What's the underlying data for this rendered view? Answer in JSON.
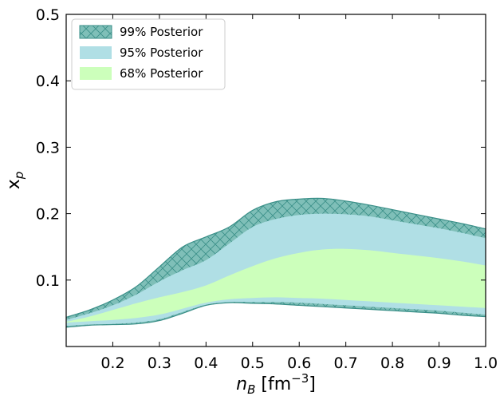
{
  "chart_data": {
    "type": "area",
    "title": "",
    "xlabel_main": "n",
    "xlabel_sub": "B",
    "xlabel_unit_open": " [fm",
    "xlabel_unit_exp": "−3",
    "xlabel_unit_close": "]",
    "ylabel_main": "x",
    "ylabel_sub": "p",
    "xlim": [
      0.1,
      1.0
    ],
    "ylim": [
      0.0,
      0.5
    ],
    "x_ticks": [
      0.2,
      0.3,
      0.4,
      0.5,
      0.6,
      0.7,
      0.8,
      0.9,
      1.0
    ],
    "x_tick_labels": [
      "0.2",
      "0.3",
      "0.4",
      "0.5",
      "0.6",
      "0.7",
      "0.8",
      "0.9",
      "1.0"
    ],
    "y_ticks": [
      0.1,
      0.2,
      0.3,
      0.4,
      0.5
    ],
    "y_tick_labels": [
      "0.1",
      "0.2",
      "0.3",
      "0.4",
      "0.5"
    ],
    "legend_position": "top-left",
    "grid": false,
    "x": [
      0.1,
      0.15,
      0.2,
      0.25,
      0.3,
      0.35,
      0.4,
      0.45,
      0.5,
      0.55,
      0.6,
      0.65,
      0.7,
      0.75,
      0.8,
      0.85,
      0.9,
      0.95,
      1.0
    ],
    "series": [
      {
        "name": "99% Posterior",
        "color": "#7fbfb8",
        "edge": "#3a8f88",
        "hatch": true,
        "lower": [
          0.029,
          0.032,
          0.033,
          0.034,
          0.039,
          0.05,
          0.062,
          0.066,
          0.065,
          0.064,
          0.062,
          0.06,
          0.058,
          0.056,
          0.054,
          0.052,
          0.05,
          0.047,
          0.045
        ],
        "upper": [
          0.044,
          0.055,
          0.07,
          0.09,
          0.12,
          0.15,
          0.165,
          0.18,
          0.205,
          0.218,
          0.222,
          0.223,
          0.219,
          0.213,
          0.206,
          0.199,
          0.192,
          0.185,
          0.177
        ]
      },
      {
        "name": "95% Posterior",
        "color": "#b0dfe5",
        "lower": [
          0.031,
          0.033,
          0.034,
          0.036,
          0.041,
          0.052,
          0.063,
          0.067,
          0.067,
          0.067,
          0.066,
          0.064,
          0.062,
          0.06,
          0.058,
          0.056,
          0.054,
          0.051,
          0.048
        ],
        "upper": [
          0.04,
          0.05,
          0.062,
          0.078,
          0.098,
          0.115,
          0.13,
          0.155,
          0.18,
          0.192,
          0.198,
          0.2,
          0.199,
          0.196,
          0.19,
          0.184,
          0.178,
          0.171,
          0.163
        ]
      },
      {
        "name": "68% Posterior",
        "color": "#ccffbb",
        "lower": [
          0.036,
          0.038,
          0.04,
          0.043,
          0.048,
          0.057,
          0.066,
          0.071,
          0.073,
          0.074,
          0.073,
          0.072,
          0.07,
          0.068,
          0.066,
          0.064,
          0.062,
          0.06,
          0.058
        ],
        "upper": [
          0.037,
          0.045,
          0.055,
          0.065,
          0.074,
          0.082,
          0.092,
          0.107,
          0.121,
          0.133,
          0.141,
          0.146,
          0.147,
          0.145,
          0.141,
          0.137,
          0.133,
          0.128,
          0.122
        ]
      }
    ]
  }
}
